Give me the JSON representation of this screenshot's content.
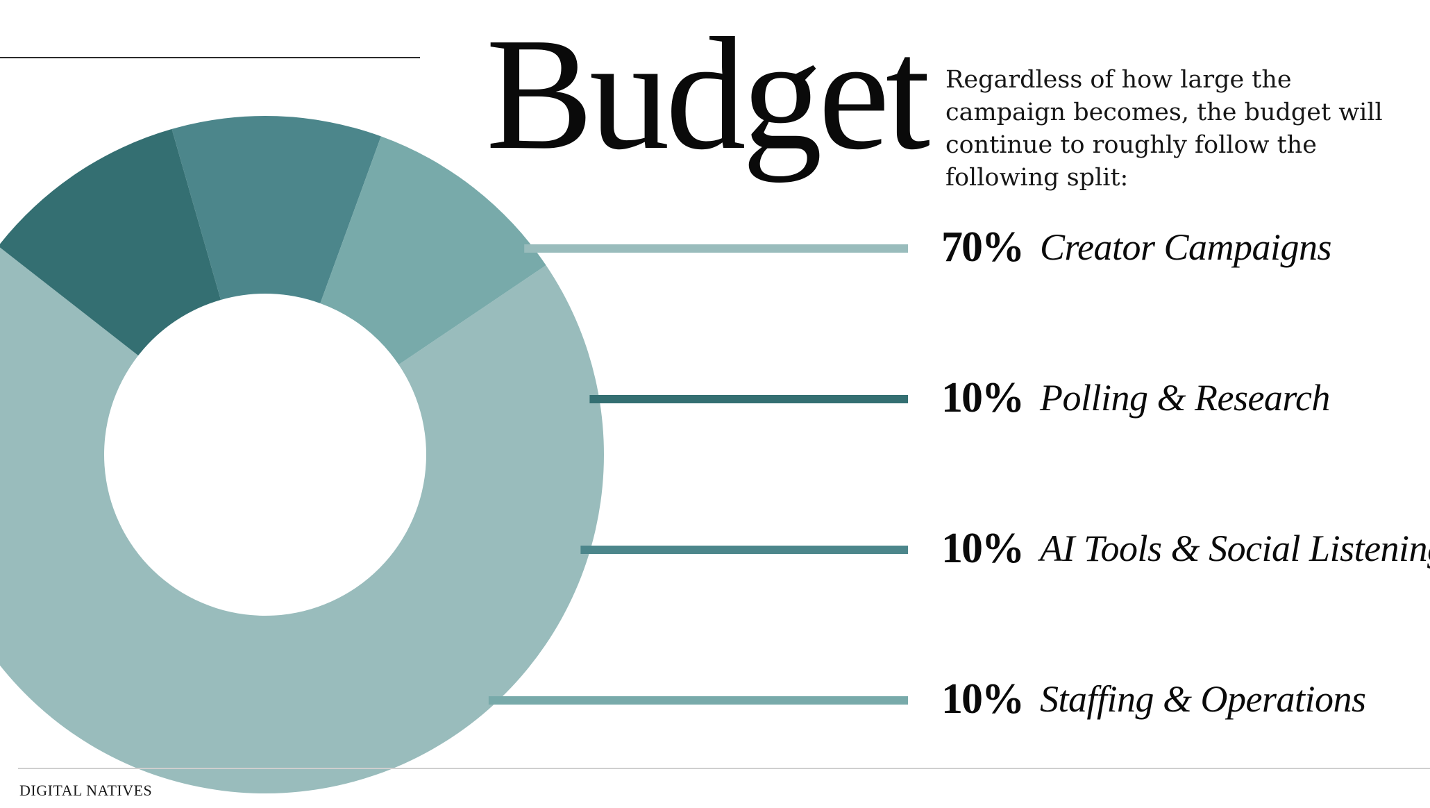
{
  "title": "Budget",
  "intro": "Regardless of how large the campaign becomes, the budget will continue to roughly follow the following split:",
  "footer": "DIGITAL NATIVES",
  "chart_data": {
    "type": "pie",
    "categories": [
      "Creator Campaigns",
      "Polling & Research",
      "AI Tools & Social Listening",
      "Staffing & Operations"
    ],
    "values": [
      70,
      10,
      10,
      10
    ],
    "labels": [
      "70%",
      "10%",
      "10%",
      "10%"
    ],
    "colors": [
      "#99bcbc",
      "#346f72",
      "#4c868b",
      "#78aaaa"
    ],
    "title": "Budget"
  }
}
